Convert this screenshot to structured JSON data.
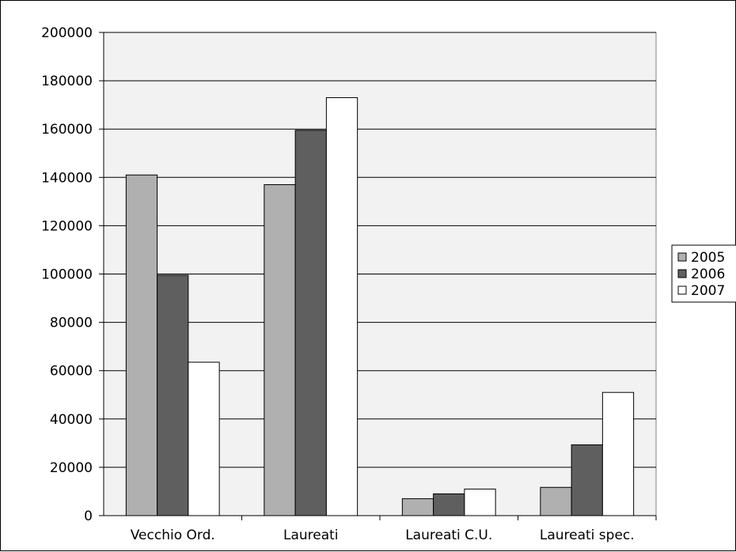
{
  "chart_data": {
    "type": "bar",
    "title": "",
    "xlabel": "",
    "ylabel": "",
    "categories": [
      "Vecchio Ord.",
      "Laureati",
      "Laureati C.U.",
      "Laureati spec."
    ],
    "series": [
      {
        "name": "2005",
        "values": [
          141000,
          137000,
          7000,
          11700
        ],
        "color": "#b0b0b0"
      },
      {
        "name": "2006",
        "values": [
          99500,
          159500,
          9000,
          29300
        ],
        "color": "#5f5f5f"
      },
      {
        "name": "2007",
        "values": [
          63500,
          173000,
          11000,
          51000
        ],
        "color": "#ffffff"
      }
    ],
    "ylim": [
      0,
      200000
    ],
    "yticks": [
      "0",
      "20000",
      "40000",
      "60000",
      "80000",
      "100000",
      "120000",
      "140000",
      "160000",
      "180000",
      "200000"
    ],
    "grid": true,
    "plot_background": "#f2f2f2",
    "legend_position": "right"
  }
}
